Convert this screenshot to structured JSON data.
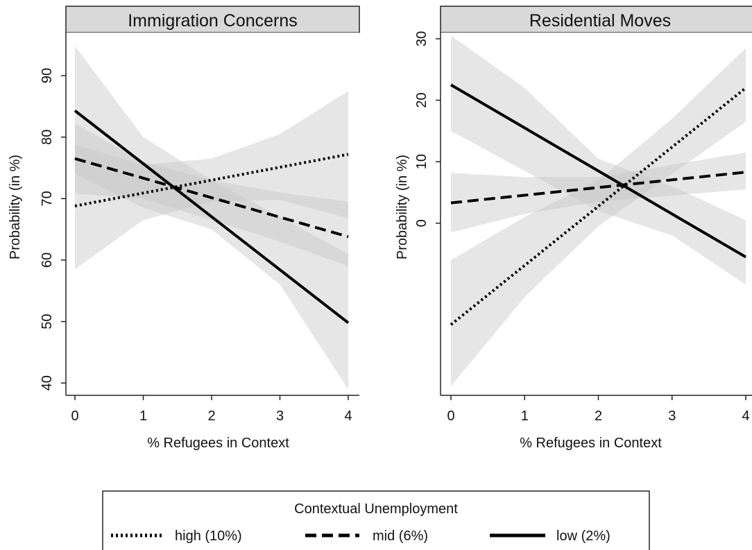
{
  "chart_data": [
    {
      "type": "line",
      "title": "Immigration Concerns",
      "xlabel": "% Refugees in Context",
      "ylabel": "Probability (in %)",
      "xlim": [
        0,
        4
      ],
      "ylim": [
        38,
        97
      ],
      "x_ticks": [
        0,
        1,
        2,
        3,
        4
      ],
      "y_ticks": [
        40,
        50,
        60,
        70,
        80,
        90
      ],
      "grid": false,
      "series": [
        {
          "name": "high (10%)",
          "style": "dotted",
          "x": [
            0,
            4
          ],
          "y": [
            68.8,
            77.2
          ],
          "band": {
            "x": [
              0,
              1,
              2,
              3,
              4
            ],
            "lower": [
              58.5,
              66.5,
              69.5,
              69.8,
              66.8
            ],
            "upper": [
              78.8,
              75.5,
              76.5,
              80.5,
              87.5
            ]
          }
        },
        {
          "name": "mid (6%)",
          "style": "dashed",
          "x": [
            0,
            4
          ],
          "y": [
            76.5,
            63.8
          ],
          "band": {
            "x": [
              0,
              1,
              2,
              3,
              4
            ],
            "lower": [
              70.8,
              70.0,
              66.5,
              63.0,
              59.0
            ],
            "upper": [
              82.2,
              76.0,
              73.0,
              71.0,
              69.5
            ]
          }
        },
        {
          "name": "low (2%)",
          "style": "solid",
          "x": [
            0,
            4
          ],
          "y": [
            84.3,
            49.8
          ],
          "band": {
            "x": [
              0,
              1,
              2,
              3,
              4
            ],
            "lower": [
              74.0,
              68.5,
              65.0,
              56.0,
              39.0
            ],
            "upper": [
              94.8,
              80.0,
              73.0,
              67.0,
              61.0
            ]
          }
        }
      ]
    },
    {
      "type": "line",
      "title": "Residential Moves",
      "xlabel": "% Refugees in Context",
      "ylabel": "Probability (in %)",
      "xlim": [
        0,
        4
      ],
      "ylim": [
        -28,
        31
      ],
      "x_ticks": [
        0,
        1,
        2,
        3,
        4
      ],
      "y_ticks": [
        0,
        10,
        20,
        30
      ],
      "grid": false,
      "series": [
        {
          "name": "high (10%)",
          "style": "dotted",
          "x": [
            0,
            4
          ],
          "y": [
            -16.5,
            22.0
          ],
          "band": {
            "x": [
              0,
              1,
              2,
              3,
              4
            ],
            "lower": [
              -26.5,
              -12.0,
              -0.5,
              8.0,
              16.5
            ],
            "upper": [
              -6.0,
              1.0,
              7.0,
              17.0,
              28.5
            ]
          }
        },
        {
          "name": "mid (6%)",
          "style": "dashed",
          "x": [
            0,
            4
          ],
          "y": [
            3.3,
            8.3
          ],
          "band": {
            "x": [
              0,
              1,
              2,
              3,
              4
            ],
            "lower": [
              -1.5,
              1.5,
              3.5,
              4.5,
              5.5
            ],
            "upper": [
              8.2,
              7.5,
              7.5,
              9.5,
              11.5
            ]
          }
        },
        {
          "name": "low (2%)",
          "style": "solid",
          "x": [
            0,
            4
          ],
          "y": [
            22.5,
            -5.5
          ],
          "band": {
            "x": [
              0,
              1,
              2,
              3,
              4
            ],
            "lower": [
              15.0,
              8.5,
              2.0,
              -2.0,
              -10.0
            ],
            "upper": [
              30.5,
              22.0,
              10.5,
              6.0,
              0.5
            ]
          }
        }
      ]
    }
  ],
  "legend": {
    "title": "Contextual Unemployment",
    "placement": "bottom",
    "items": [
      {
        "label": "high (10%)",
        "style": "dotted"
      },
      {
        "label": "mid (6%)",
        "style": "dashed"
      },
      {
        "label": "low (2%)",
        "style": "solid"
      }
    ]
  },
  "colors": {
    "line": "#000000",
    "band": "#c8c8c8",
    "strip": "#d9d9d9",
    "frame": "#222222"
  }
}
